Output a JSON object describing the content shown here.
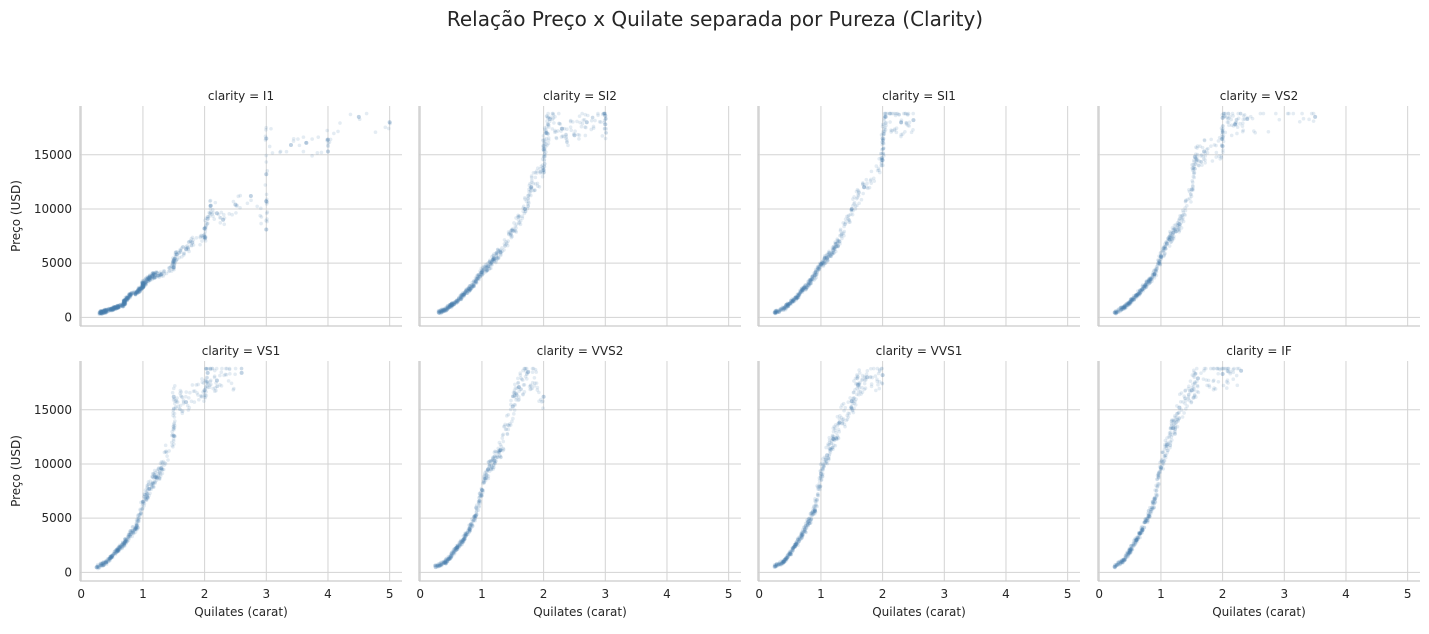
{
  "suptitle": "Relação Preço x Quilate separada por Pureza (Clarity)",
  "chart_data": {
    "type": "scatter",
    "layout": "facet-grid 2x4",
    "shared_x": true,
    "shared_y": true,
    "xlabel": "Quilates (carat)",
    "ylabel": "Preço (USD)",
    "xlim": [
      -0.02,
      5.2
    ],
    "ylim": [
      -800,
      19500
    ],
    "xticks": [
      0,
      1,
      2,
      3,
      4,
      5
    ],
    "yticks": [
      0,
      5000,
      10000,
      15000
    ],
    "grid": true,
    "marker_color": "#4a7fb0",
    "marker_alpha": 0.15,
    "panels": [
      {
        "title": "clarity = I1",
        "points": [
          [
            0.3,
            420
          ],
          [
            0.35,
            480
          ],
          [
            0.4,
            600
          ],
          [
            0.5,
            750
          ],
          [
            0.55,
            900
          ],
          [
            0.6,
            1000
          ],
          [
            0.7,
            1200
          ],
          [
            0.7,
            1500
          ],
          [
            0.75,
            1800
          ],
          [
            0.8,
            2100
          ],
          [
            0.9,
            2300
          ],
          [
            0.95,
            2600
          ],
          [
            1.0,
            2800
          ],
          [
            1.0,
            3100
          ],
          [
            1.05,
            3300
          ],
          [
            1.1,
            3600
          ],
          [
            1.15,
            3800
          ],
          [
            1.2,
            3900
          ],
          [
            1.3,
            4000
          ],
          [
            1.5,
            4600
          ],
          [
            1.5,
            5200
          ],
          [
            1.55,
            5800
          ],
          [
            1.7,
            6300
          ],
          [
            1.8,
            6900
          ],
          [
            2.0,
            7400
          ],
          [
            2.0,
            8200
          ],
          [
            2.05,
            9100
          ],
          [
            2.1,
            10300
          ],
          [
            2.2,
            9600
          ],
          [
            2.3,
            9000
          ],
          [
            2.5,
            10400
          ],
          [
            2.75,
            11200
          ],
          [
            3.0,
            8100
          ],
          [
            3.0,
            10700
          ],
          [
            3.0,
            13200
          ],
          [
            3.0,
            16500
          ],
          [
            3.4,
            15900
          ],
          [
            3.65,
            16100
          ],
          [
            4.0,
            15300
          ],
          [
            4.0,
            16400
          ],
          [
            4.5,
            18500
          ],
          [
            5.0,
            18000
          ]
        ]
      },
      {
        "title": "clarity = SI2",
        "points": [
          [
            0.3,
            450
          ],
          [
            0.4,
            700
          ],
          [
            0.5,
            1100
          ],
          [
            0.6,
            1500
          ],
          [
            0.7,
            2100
          ],
          [
            0.8,
            2600
          ],
          [
            0.9,
            3300
          ],
          [
            1.0,
            4200
          ],
          [
            1.1,
            4700
          ],
          [
            1.2,
            5400
          ],
          [
            1.3,
            6000
          ],
          [
            1.5,
            8000
          ],
          [
            1.7,
            10000
          ],
          [
            1.8,
            12000
          ],
          [
            2.0,
            13600
          ],
          [
            2.0,
            15500
          ],
          [
            2.05,
            17000
          ],
          [
            2.1,
            18300
          ],
          [
            2.3,
            17400
          ],
          [
            2.5,
            16800
          ],
          [
            2.7,
            18000
          ],
          [
            3.0,
            17800
          ],
          [
            3.0,
            18600
          ]
        ]
      },
      {
        "title": "clarity = SI1",
        "points": [
          [
            0.25,
            450
          ],
          [
            0.4,
            800
          ],
          [
            0.5,
            1300
          ],
          [
            0.6,
            1800
          ],
          [
            0.7,
            2500
          ],
          [
            0.8,
            3000
          ],
          [
            0.9,
            3900
          ],
          [
            1.0,
            4900
          ],
          [
            1.1,
            5500
          ],
          [
            1.2,
            6200
          ],
          [
            1.3,
            7000
          ],
          [
            1.5,
            10000
          ],
          [
            1.7,
            12000
          ],
          [
            2.0,
            14500
          ],
          [
            2.0,
            16500
          ],
          [
            2.05,
            18500
          ],
          [
            2.3,
            18000
          ],
          [
            2.5,
            18200
          ]
        ]
      },
      {
        "title": "clarity = VS2",
        "points": [
          [
            0.25,
            450
          ],
          [
            0.4,
            900
          ],
          [
            0.5,
            1400
          ],
          [
            0.6,
            2000
          ],
          [
            0.7,
            2600
          ],
          [
            0.8,
            3300
          ],
          [
            0.9,
            4000
          ],
          [
            1.0,
            5600
          ],
          [
            1.1,
            6800
          ],
          [
            1.2,
            7800
          ],
          [
            1.3,
            8600
          ],
          [
            1.5,
            11800
          ],
          [
            1.55,
            14800
          ],
          [
            1.7,
            15300
          ],
          [
            2.0,
            15800
          ],
          [
            2.0,
            18400
          ],
          [
            2.2,
            17800
          ],
          [
            2.4,
            18300
          ],
          [
            3.5,
            18500
          ]
        ]
      },
      {
        "title": "clarity = VS1",
        "points": [
          [
            0.25,
            470
          ],
          [
            0.4,
            900
          ],
          [
            0.5,
            1500
          ],
          [
            0.6,
            2100
          ],
          [
            0.7,
            2700
          ],
          [
            0.8,
            3500
          ],
          [
            0.9,
            4300
          ],
          [
            1.0,
            6500
          ],
          [
            1.1,
            7700
          ],
          [
            1.2,
            8800
          ],
          [
            1.3,
            9600
          ],
          [
            1.5,
            12600
          ],
          [
            1.5,
            16200
          ],
          [
            1.7,
            15700
          ],
          [
            2.0,
            16800
          ],
          [
            2.05,
            18400
          ],
          [
            2.2,
            17700
          ],
          [
            2.6,
            18400
          ]
        ]
      },
      {
        "title": "clarity = VVS2",
        "points": [
          [
            0.25,
            480
          ],
          [
            0.4,
            900
          ],
          [
            0.5,
            1500
          ],
          [
            0.6,
            2300
          ],
          [
            0.7,
            3000
          ],
          [
            0.8,
            4000
          ],
          [
            0.9,
            5200
          ],
          [
            1.0,
            7600
          ],
          [
            1.1,
            9500
          ],
          [
            1.2,
            10300
          ],
          [
            1.3,
            11300
          ],
          [
            1.5,
            15300
          ],
          [
            1.6,
            17100
          ],
          [
            1.75,
            18500
          ],
          [
            2.0,
            16200
          ]
        ]
      },
      {
        "title": "clarity = VVS1",
        "points": [
          [
            0.25,
            520
          ],
          [
            0.4,
            1000
          ],
          [
            0.5,
            1700
          ],
          [
            0.6,
            2600
          ],
          [
            0.7,
            3500
          ],
          [
            0.8,
            4700
          ],
          [
            0.9,
            5800
          ],
          [
            1.0,
            9100
          ],
          [
            1.1,
            10800
          ],
          [
            1.2,
            12300
          ],
          [
            1.3,
            13800
          ],
          [
            1.5,
            15800
          ],
          [
            1.6,
            17300
          ],
          [
            1.75,
            18000
          ],
          [
            2.0,
            18200
          ]
        ]
      },
      {
        "title": "clarity = IF",
        "points": [
          [
            0.25,
            520
          ],
          [
            0.4,
            1100
          ],
          [
            0.5,
            2000
          ],
          [
            0.6,
            3000
          ],
          [
            0.7,
            3900
          ],
          [
            0.8,
            5200
          ],
          [
            0.9,
            6800
          ],
          [
            1.0,
            9700
          ],
          [
            1.1,
            11800
          ],
          [
            1.2,
            13300
          ],
          [
            1.3,
            15200
          ],
          [
            1.5,
            16800
          ],
          [
            1.6,
            17900
          ],
          [
            2.0,
            18300
          ],
          [
            2.3,
            18600
          ]
        ]
      }
    ]
  }
}
